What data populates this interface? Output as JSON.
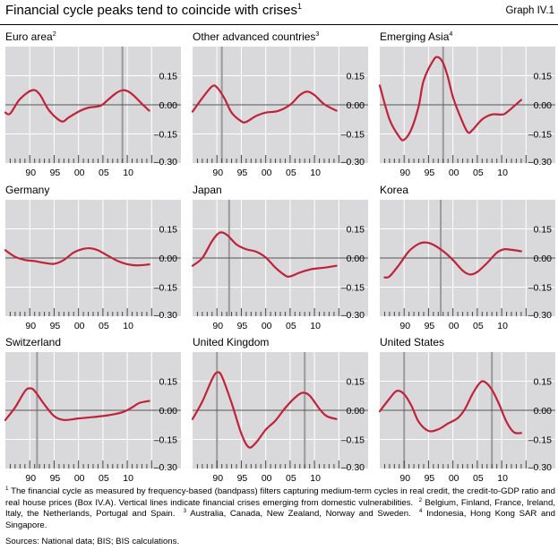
{
  "header": {
    "title": "Financial cycle peaks tend to coincide with crises",
    "title_note": "1",
    "graph_number": "Graph IV.1"
  },
  "colors": {
    "background": "#d9d9db",
    "series": "#c0223a",
    "zero_line": "#555555",
    "crisis_line": "#9a9a9a",
    "grid": "#ffffff"
  },
  "chart_data": [
    {
      "type": "line",
      "title": "Euro area",
      "title_note": "2",
      "xlim": [
        1985,
        2021
      ],
      "ylim": [
        -0.3,
        0.3
      ],
      "grid": true,
      "x_ticks": [
        "90",
        "95",
        "00",
        "05",
        "10"
      ],
      "y_ticks": [
        "0.15",
        "0.00",
        "–0.15",
        "–0.30"
      ],
      "crises": [
        2009
      ],
      "x": [
        1985,
        1986,
        1988,
        1990.5,
        1992,
        1994,
        1996.5,
        1998,
        2000,
        2002,
        2004.5,
        2006,
        2008,
        2009.5,
        2011,
        2013,
        2014.5
      ],
      "y": [
        -0.04,
        -0.045,
        0.03,
        0.075,
        0.055,
        -0.03,
        -0.085,
        -0.065,
        -0.035,
        -0.015,
        -0.005,
        0.025,
        0.065,
        0.075,
        0.055,
        0.005,
        -0.03
      ]
    },
    {
      "type": "line",
      "title": "Other advanced countries",
      "title_note": "3",
      "xlim": [
        1985,
        2021
      ],
      "ylim": [
        -0.3,
        0.3
      ],
      "grid": true,
      "x_ticks": [
        "90",
        "95",
        "00",
        "05",
        "10"
      ],
      "y_ticks": [
        "0.15",
        "0.00",
        "–0.15",
        "–0.30"
      ],
      "crises": [
        1991
      ],
      "x": [
        1985,
        1987,
        1989,
        1990,
        1991.5,
        1993,
        1995,
        1996,
        1998,
        2000,
        2002.5,
        2005,
        2007,
        2008.5,
        2010,
        2012,
        2014.5
      ],
      "y": [
        -0.035,
        0.035,
        0.095,
        0.09,
        0.035,
        -0.04,
        -0.085,
        -0.088,
        -0.058,
        -0.04,
        -0.032,
        0,
        0.05,
        0.068,
        0.05,
        0.003,
        -0.03
      ]
    },
    {
      "type": "line",
      "title": "Emerging Asia",
      "title_note": "4",
      "xlim": [
        1985,
        2021
      ],
      "ylim": [
        -0.3,
        0.3
      ],
      "grid": true,
      "x_ticks": [
        "90",
        "95",
        "00",
        "05",
        "10"
      ],
      "y_ticks": [
        "0.15",
        "0.00",
        "–0.15",
        "–0.30"
      ],
      "crises": [
        1998
      ],
      "x": [
        1985,
        1987,
        1989,
        1990,
        1991.5,
        1993,
        1994,
        1996,
        1997,
        1998,
        1999,
        2000,
        2001.5,
        2003,
        2004,
        2006,
        2008,
        2010,
        2011,
        2014
      ],
      "y": [
        0.1,
        -0.075,
        -0.165,
        -0.18,
        -0.125,
        -0.005,
        0.125,
        0.23,
        0.245,
        0.215,
        0.14,
        0.04,
        -0.06,
        -0.14,
        -0.13,
        -0.075,
        -0.05,
        -0.05,
        -0.04,
        0.025
      ]
    },
    {
      "type": "line",
      "title": "Germany",
      "title_note": "",
      "xlim": [
        1985,
        2021
      ],
      "ylim": [
        -0.3,
        0.3
      ],
      "grid": true,
      "x_ticks": [
        "90",
        "95",
        "00",
        "05",
        "10"
      ],
      "y_ticks": [
        "0.15",
        "0.00",
        "–0.15",
        "–0.30"
      ],
      "crises": [],
      "x": [
        1985,
        1987,
        1989,
        1991,
        1993,
        1995,
        1997,
        1999,
        2001,
        2002.5,
        2004,
        2006,
        2008,
        2010,
        2012,
        2014.5
      ],
      "y": [
        0.04,
        0.006,
        -0.01,
        -0.016,
        -0.025,
        -0.03,
        -0.01,
        0.028,
        0.047,
        0.05,
        0.04,
        0.012,
        -0.015,
        -0.032,
        -0.038,
        -0.033
      ]
    },
    {
      "type": "line",
      "title": "Japan",
      "title_note": "",
      "xlim": [
        1985,
        2021
      ],
      "ylim": [
        -0.3,
        0.3
      ],
      "grid": true,
      "x_ticks": [
        "90",
        "95",
        "00",
        "05",
        "10"
      ],
      "y_ticks": [
        "0.15",
        "0.00",
        "–0.15",
        "–0.30"
      ],
      "crises": [
        1992.5
      ],
      "x": [
        1985,
        1987,
        1989,
        1990.5,
        1992,
        1994,
        1996,
        1998,
        2000,
        2002,
        2004,
        2005,
        2007,
        2009.5,
        2012,
        2014.5
      ],
      "y": [
        -0.04,
        0,
        0.087,
        0.13,
        0.12,
        0.07,
        0.045,
        0.033,
        0.003,
        -0.05,
        -0.09,
        -0.095,
        -0.075,
        -0.057,
        -0.05,
        -0.04
      ]
    },
    {
      "type": "line",
      "title": "Korea",
      "title_note": "",
      "xlim": [
        1985,
        2021
      ],
      "ylim": [
        -0.3,
        0.3
      ],
      "grid": true,
      "x_ticks": [
        "90",
        "95",
        "00",
        "05",
        "10"
      ],
      "y_ticks": [
        "0.15",
        "0.00",
        "–0.15",
        "–0.30"
      ],
      "crises": [
        1997.5
      ],
      "x": [
        1986,
        1987,
        1989,
        1991,
        1993,
        1994.5,
        1996,
        1998,
        2000,
        2002,
        2003.5,
        2005,
        2007,
        2009,
        2010.5,
        2012,
        2014
      ],
      "y": [
        -0.1,
        -0.095,
        -0.034,
        0.035,
        0.073,
        0.08,
        0.068,
        0.035,
        -0.01,
        -0.065,
        -0.085,
        -0.072,
        -0.026,
        0.027,
        0.045,
        0.042,
        0.035
      ]
    },
    {
      "type": "line",
      "title": "Switzerland",
      "title_note": "",
      "xlim": [
        1985,
        2021
      ],
      "ylim": [
        -0.3,
        0.3
      ],
      "grid": true,
      "x_ticks": [
        "90",
        "95",
        "00",
        "05",
        "10"
      ],
      "y_ticks": [
        "0.15",
        "0.00",
        "–0.15",
        "–0.30"
      ],
      "crises": [
        1991.5
      ],
      "x": [
        1985,
        1987,
        1989,
        1990,
        1991,
        1993,
        1995,
        1997,
        2000,
        2003,
        2006,
        2009,
        2011,
        2012.5,
        2014.5
      ],
      "y": [
        -0.05,
        0.015,
        0.098,
        0.113,
        0.1,
        0.03,
        -0.03,
        -0.05,
        -0.042,
        -0.035,
        -0.026,
        -0.01,
        0.015,
        0.038,
        0.048
      ]
    },
    {
      "type": "line",
      "title": "United Kingdom",
      "title_note": "",
      "xlim": [
        1985,
        2021
      ],
      "ylim": [
        -0.3,
        0.3
      ],
      "grid": true,
      "x_ticks": [
        "90",
        "95",
        "00",
        "05",
        "10"
      ],
      "y_ticks": [
        "0.15",
        "0.00",
        "–0.15",
        "–0.30"
      ],
      "crises": [
        1990,
        2008
      ],
      "x": [
        1985,
        1987,
        1989,
        1990,
        1991,
        1993,
        1995,
        1996.5,
        1998,
        2000,
        2002,
        2004,
        2006,
        2007.5,
        2009,
        2011,
        2012.5,
        2014.5
      ],
      "y": [
        -0.045,
        0.045,
        0.16,
        0.195,
        0.175,
        0.038,
        -0.12,
        -0.19,
        -0.167,
        -0.1,
        -0.053,
        0.012,
        0.065,
        0.09,
        0.076,
        0.008,
        -0.03,
        -0.045
      ]
    },
    {
      "type": "line",
      "title": "United States",
      "title_note": "",
      "xlim": [
        1985,
        2021
      ],
      "ylim": [
        -0.3,
        0.3
      ],
      "grid": true,
      "x_ticks": [
        "90",
        "95",
        "00",
        "05",
        "10"
      ],
      "y_ticks": [
        "0.15",
        "0.00",
        "–0.15",
        "–0.30"
      ],
      "crises": [
        1990,
        2008
      ],
      "x": [
        1985,
        1987,
        1988.5,
        1990,
        1991.5,
        1993,
        1995,
        1997,
        1999,
        2001,
        2002.5,
        2004,
        2005.5,
        2006.5,
        2008,
        2009.5,
        2011,
        2012.5,
        2014
      ],
      "y": [
        -0.005,
        0.06,
        0.1,
        0.083,
        0.023,
        -0.06,
        -0.106,
        -0.098,
        -0.068,
        -0.04,
        0.008,
        0.083,
        0.14,
        0.147,
        0.106,
        0.03,
        -0.06,
        -0.113,
        -0.117
      ]
    }
  ],
  "footnotes": [
    {
      "mark": "1",
      "text": "The financial cycle as measured by frequency-based (bandpass) filters capturing medium-term cycles in real credit, the credit-to-GDP ratio and real house prices (Box IV.A). Vertical lines indicate financial crises emerging from domestic vulnerabilities."
    },
    {
      "mark": "2",
      "text": "Belgium, Finland, France, Ireland, Italy, the Netherlands, Portugal and Spain."
    },
    {
      "mark": "3",
      "text": "Australia, Canada, New Zealand, Norway and Sweden."
    },
    {
      "mark": "4",
      "text": "Indonesia, Hong Kong SAR and Singapore."
    }
  ],
  "sources": "Sources: National data; BIS; BIS calculations."
}
